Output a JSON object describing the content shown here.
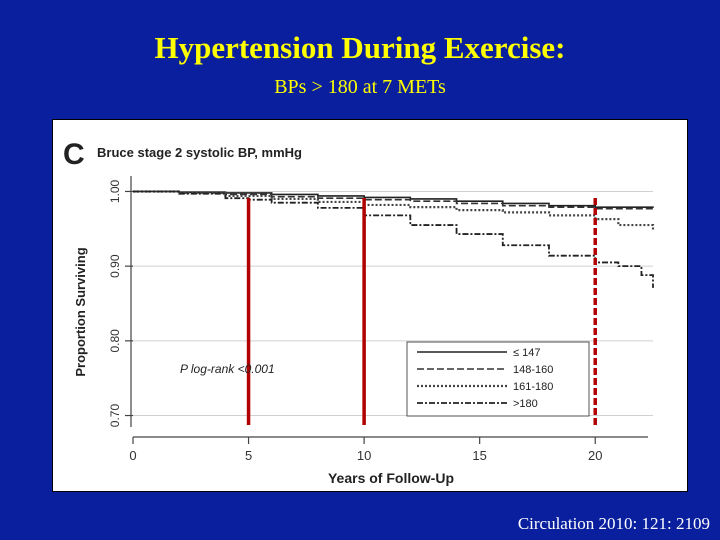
{
  "slide": {
    "title": "Hypertension During Exercise:",
    "subtitle": "BPs > 180 at 7 METs",
    "citation": "Circulation 2010: 121: 2109"
  },
  "colors": {
    "background": "#0a1f9e",
    "title": "#ffff00",
    "marker": "#b00000",
    "ink": "#222222"
  },
  "chart_data": {
    "type": "line",
    "panel_label": "C",
    "title": "Bruce stage 2 systolic BP, mmHg",
    "xlabel": "Years of Follow-Up",
    "ylabel": "Proportion Surviving",
    "xlim": [
      0,
      22.5
    ],
    "ylim": [
      0.69,
      1.01
    ],
    "xticks": [
      0,
      5,
      10,
      15,
      20
    ],
    "yticks": [
      1.0,
      0.9,
      0.8,
      0.7
    ],
    "ytick_labels": [
      "1.00",
      "0.90",
      "0.80",
      "0.70"
    ],
    "grid": true,
    "annotation": "P log-rank <0.001",
    "legend_position": "bottom-right",
    "series": [
      {
        "name": "≤ 147",
        "style": "solid",
        "x": [
          0,
          2,
          4,
          6,
          8,
          10,
          12,
          14,
          16,
          18,
          20,
          22.5
        ],
        "y": [
          1.0,
          0.999,
          0.998,
          0.996,
          0.994,
          0.992,
          0.99,
          0.987,
          0.984,
          0.981,
          0.979,
          0.978
        ]
      },
      {
        "name": "148-160",
        "style": "dashed",
        "x": [
          0,
          2,
          4,
          6,
          8,
          10,
          12,
          14,
          16,
          18,
          20,
          22.5
        ],
        "y": [
          1.0,
          0.998,
          0.996,
          0.993,
          0.991,
          0.989,
          0.987,
          0.984,
          0.981,
          0.979,
          0.977,
          0.975
        ]
      },
      {
        "name": "161-180",
        "style": "dotted",
        "x": [
          0,
          2,
          4,
          6,
          8,
          10,
          12,
          14,
          16,
          18,
          20,
          21,
          22.5
        ],
        "y": [
          1.0,
          0.998,
          0.994,
          0.99,
          0.986,
          0.982,
          0.979,
          0.975,
          0.972,
          0.968,
          0.963,
          0.955,
          0.948
        ]
      },
      {
        "name": ">180",
        "style": "dashdot",
        "x": [
          0,
          2,
          4,
          5,
          6,
          8,
          10,
          12,
          14,
          16,
          18,
          20,
          21,
          22,
          22.5
        ],
        "y": [
          1.0,
          0.997,
          0.991,
          0.989,
          0.985,
          0.978,
          0.968,
          0.955,
          0.943,
          0.928,
          0.914,
          0.905,
          0.9,
          0.888,
          0.871
        ]
      }
    ],
    "markers": [
      {
        "x": 5,
        "style": "solid"
      },
      {
        "x": 10,
        "style": "solid"
      },
      {
        "x": 20,
        "style": "dashed"
      }
    ]
  }
}
